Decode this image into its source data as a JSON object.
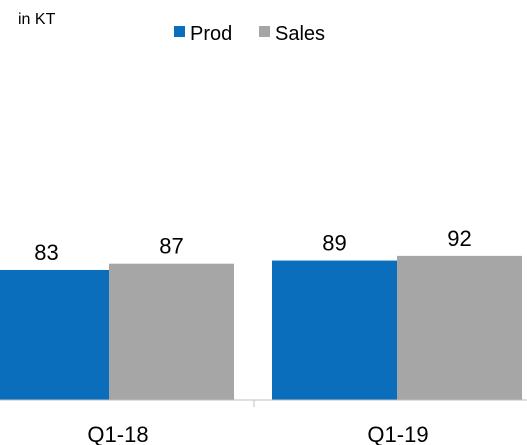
{
  "chart_data": {
    "type": "bar",
    "unit_label": "in KT",
    "categories": [
      "Q1-18",
      "Q1-19"
    ],
    "series": [
      {
        "name": "Prod",
        "color": "#0A6EBD",
        "values": [
          83,
          89
        ]
      },
      {
        "name": "Sales",
        "color": "#A6A6A6",
        "values": [
          87,
          92
        ]
      }
    ],
    "ylim": [
      0,
      100
    ],
    "grid": false,
    "legend_position": "top-center"
  }
}
